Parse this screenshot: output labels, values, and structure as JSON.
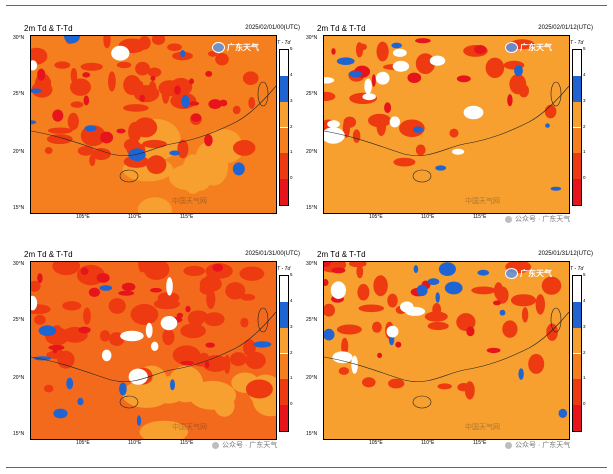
{
  "panels": [
    {
      "title": "2m Td & T-Td",
      "date": "2025/02/01/00(UTC)",
      "logo": "广东天气",
      "watermark": "中国天气网",
      "source": "",
      "fill": "#f57f1f",
      "spots": 52,
      "white_spots": 2,
      "blue_spots": 9
    },
    {
      "title": "2m Td & T-Td",
      "date": "2025/02/01/12(UTC)",
      "logo": "广东天气",
      "watermark": "中国天气网",
      "source": "公众号 · 广东天气",
      "fill": "#f7a030",
      "spots": 26,
      "white_spots": 12,
      "blue_spots": 8
    },
    {
      "title": "2m Td & T-Td",
      "date": "2025/01/31/00(UTC)",
      "logo": "",
      "watermark": "中国天气网",
      "source": "公众号 · 广东天气",
      "fill": "#f46a1c",
      "spots": 50,
      "white_spots": 8,
      "blue_spots": 10
    },
    {
      "title": "2m Td & T-Td",
      "date": "2025/01/31/12(UTC)",
      "logo": "广东天气",
      "watermark": "中国天气网",
      "source": "公众号 · 广东天气",
      "fill": "#f7a030",
      "spots": 34,
      "white_spots": 6,
      "blue_spots": 12
    }
  ],
  "axes": {
    "lat_labels": [
      "30°N",
      "25°N",
      "20°N",
      "15°N"
    ],
    "lon_labels": [
      "105°E",
      "110°E",
      "115°E"
    ]
  },
  "colorbar": {
    "title": "T - Td",
    "ticks": [
      "5",
      "4",
      "3",
      "2",
      "1",
      "0"
    ],
    "colors": [
      "#ffffff",
      "#1e64d2",
      "#f7a030",
      "#f57f1f",
      "#ee3a10",
      "#e8141c"
    ]
  }
}
